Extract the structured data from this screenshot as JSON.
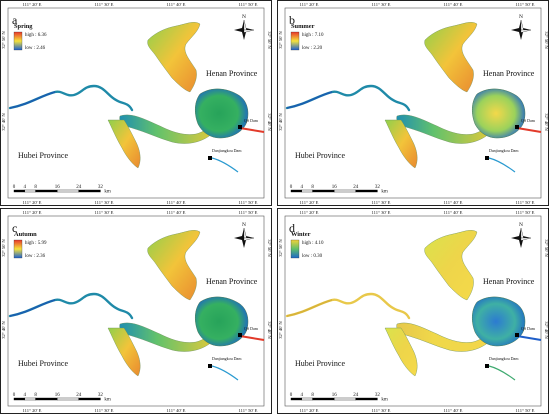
{
  "panels": [
    {
      "letter": "a",
      "season": "Spring",
      "legend_high": "high : 6.36",
      "legend_low": "low : 2.46",
      "scheme": "rainbow",
      "coord_top": [
        "111° 20' E",
        "111° 30' E",
        "111° 40' E",
        "111° 50' E"
      ],
      "coord_bottom": [
        "111° 20' E",
        "111° 30' E",
        "111° 40' E",
        "111° 50' E"
      ],
      "coord_left": [
        "32° 50' N",
        "32° 40' N"
      ],
      "coord_right": [
        "32° 50' N",
        "32° 40' N"
      ]
    },
    {
      "letter": "b",
      "season": "Summer",
      "legend_high": "high : 7.10",
      "legend_low": "low : 2.20",
      "scheme": "rainbow",
      "coord_top": [
        "111° 20' E",
        "111° 30' E",
        "111° 40' E",
        "111° 50' E"
      ],
      "coord_bottom": [
        "111° 20' E",
        "111° 30' E",
        "111° 40' E",
        "111° 50' E"
      ],
      "coord_left": [
        "32° 50' N",
        "32° 40' N"
      ],
      "coord_right": [
        "32° 50' N",
        "32° 40' N"
      ]
    },
    {
      "letter": "c",
      "season": "Autumn",
      "legend_high": "high : 5.99",
      "legend_low": "low : 2.36",
      "scheme": "rainbow",
      "coord_top": [
        "111° 20' E",
        "111° 30' E",
        "111° 40' E",
        "111° 50' E"
      ],
      "coord_bottom": [
        "111° 20' E",
        "111° 30' E",
        "111° 40' E",
        "111° 50' E"
      ],
      "coord_left": [
        "32° 50' N",
        "32° 40' N"
      ],
      "coord_right": [
        "32° 50' N",
        "32° 40' N"
      ]
    },
    {
      "letter": "d",
      "season": "Winter",
      "legend_high": "high : 4.10",
      "legend_low": "low : 0.30",
      "scheme": "yellow-blue",
      "coord_top": [
        "111° 20' E",
        "111° 30' E",
        "111° 40' E",
        "111° 50' E"
      ],
      "coord_bottom": [
        "111° 20' E",
        "111° 30' E",
        "111° 40' E",
        "111° 50' E"
      ],
      "coord_left": [
        "32° 50' N",
        "32° 40' N"
      ],
      "coord_right": [
        "32° 50' N",
        "32° 40' N"
      ]
    }
  ],
  "labels": {
    "north": "N",
    "henan": "Henan Province",
    "hubei": "Hubei Province",
    "qh_dam": "QS Dam",
    "danjiangkou_dam": "Danjiangkou Dam"
  },
  "scalebar": {
    "ticks": [
      "0",
      "4",
      "8",
      "16",
      "24",
      "32"
    ],
    "unit": "km"
  },
  "colors": {
    "rainbow_high": "#e8362a",
    "rainbow_mid": "#f5e33c",
    "rainbow_low": "#1b5fd1",
    "yb_high": "#f2d23a",
    "yb_mid": "#5fbf6a",
    "yb_low": "#1e67c9"
  }
}
